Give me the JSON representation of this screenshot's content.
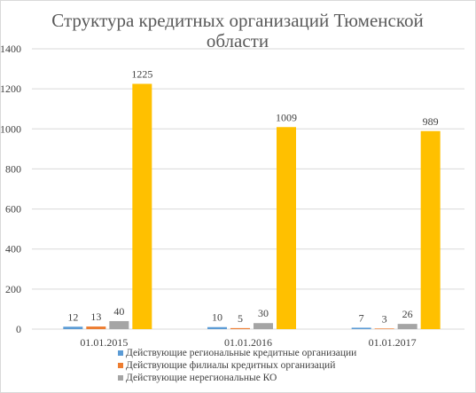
{
  "chart_data": {
    "type": "bar",
    "title_lines": [
      "Структура  кредитных организаций Тюменской",
      "области"
    ],
    "categories": [
      "01.01.2015",
      "01.01.2016",
      "01.01.2017"
    ],
    "ylim": [
      0,
      1400
    ],
    "yticks": [
      0,
      200,
      400,
      600,
      800,
      1000,
      1200,
      1400
    ],
    "grid": true,
    "legend_position": "bottom-left",
    "series": [
      {
        "name": "Действующие региональные кредитные организации",
        "color": "#5b9bd5",
        "values": [
          12,
          10,
          7
        ]
      },
      {
        "name": "Действующие филиалы кредитных организаций",
        "color": "#ed7d31",
        "values": [
          13,
          5,
          3
        ]
      },
      {
        "name": "Действующие нерегиональные КО",
        "color": "#a5a5a5",
        "values": [
          40,
          30,
          26
        ]
      },
      {
        "name": "",
        "color": "#ffc000",
        "values": [
          1225,
          1009,
          989
        ]
      }
    ]
  }
}
